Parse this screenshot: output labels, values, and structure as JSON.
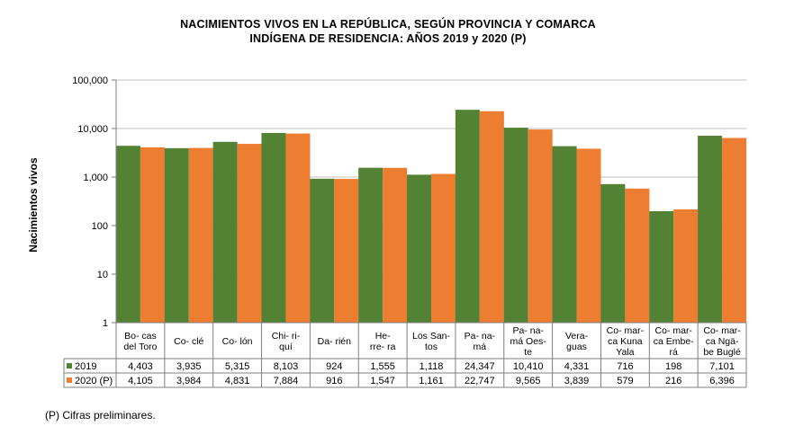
{
  "colors": {
    "s2019": "#548235",
    "s2020": "#ED7D31",
    "grid": "#BFBFBF",
    "axis": "#7F7F7F"
  },
  "chart_data": {
    "type": "bar",
    "title": [
      "NACIMIENTOS  VIVOS EN LA REPÚBLICA,  SEGÚN  PROVINCIA Y COMARCA",
      "INDÍGENA  DE RESIDENCIA:   AÑOS 2019 y 2020 (P)"
    ],
    "ylabel": "Nacimientos vivos",
    "xlabel": "",
    "yscale": "log",
    "ylim": [
      1,
      100000
    ],
    "yticks": [
      "1",
      "10",
      "100",
      "1,000",
      "10,000",
      "100,000"
    ],
    "categories": [
      [
        "Bo- cas",
        "del Toro"
      ],
      [
        "Co- clé"
      ],
      [
        "Co- lón"
      ],
      [
        "Chi-      ri-",
        "quí"
      ],
      [
        "Da- rién"
      ],
      [
        "He-",
        "rre-       ra"
      ],
      [
        "Los San-",
        "tos"
      ],
      [
        "Pa- na-",
        "má"
      ],
      [
        "Pa- na-",
        "má Oes-",
        "te"
      ],
      [
        "Vera-",
        "guas"
      ],
      [
        "Co- mar-",
        "ca Kuna",
        "Yala"
      ],
      [
        "Co- mar-",
        "ca Embe-",
        "rá"
      ],
      [
        "Co- mar-",
        "ca Ngä-",
        "be Buglé"
      ]
    ],
    "series": [
      {
        "name": "2019",
        "values": [
          4403,
          3935,
          5315,
          8103,
          924,
          1555,
          1118,
          24347,
          10410,
          4331,
          716,
          198,
          7101
        ],
        "labels": [
          "4,403",
          "3,935",
          "5,315",
          "8,103",
          "924",
          "1,555",
          "1,118",
          "24,347",
          "10,410",
          "4,331",
          "716",
          "198",
          "7,101"
        ]
      },
      {
        "name": "2020 (P)",
        "values": [
          4105,
          3984,
          4831,
          7884,
          916,
          1547,
          1161,
          22747,
          9565,
          3839,
          579,
          216,
          6396
        ],
        "labels": [
          "4,105",
          "3,984",
          "4,831",
          "7,884",
          "916",
          "1,547",
          "1,161",
          "22,747",
          "9,565",
          "3,839",
          "579",
          "216",
          "6,396"
        ]
      }
    ]
  },
  "footnote": "(P) Cifras preliminares."
}
